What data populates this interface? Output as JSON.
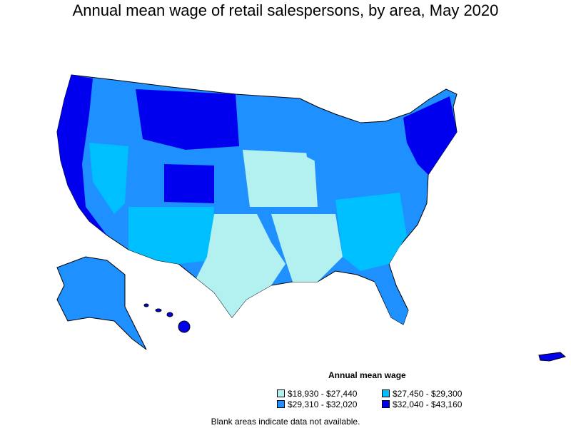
{
  "title": "Annual mean wage of retail salespersons, by area, May 2020",
  "legend": {
    "title": "Annual mean wage",
    "items": [
      {
        "label": "$18,930 - $27,440",
        "color": "#b3f0f0"
      },
      {
        "label": "$27,450 - $29,300",
        "color": "#00bfff"
      },
      {
        "label": "$29,310 - $32,020",
        "color": "#1e90ff"
      },
      {
        "label": "$32,040 - $43,160",
        "color": "#0000ee"
      }
    ]
  },
  "note": "Blank areas indicate data not available."
}
